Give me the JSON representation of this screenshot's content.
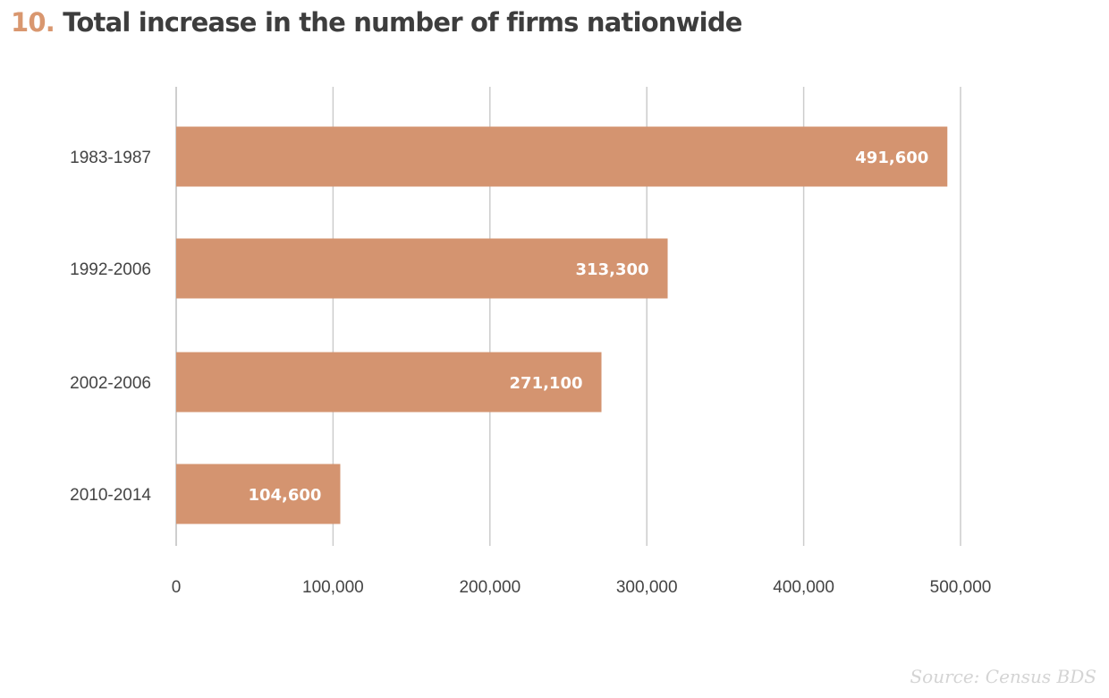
{
  "header": {
    "number": "10.",
    "title": "Total increase in the number of firms nationwide"
  },
  "source": "Source:  Census BDS",
  "colors": {
    "bar": "#d49470",
    "title_number": "#d9976f",
    "title_text": "#3d3d3d",
    "gridline": "#cccccc",
    "data_label": "#ffffff",
    "source_text": "#d4d4d4"
  },
  "chart_data": {
    "type": "bar",
    "orientation": "horizontal",
    "title": "Total increase in the number of firms nationwide",
    "xlabel": "",
    "ylabel": "",
    "categories": [
      "1983-1987",
      "1992-2006",
      "2002-2006",
      "2010-2014"
    ],
    "values": [
      491600,
      313300,
      271100,
      104600
    ],
    "data_labels": [
      "491,600",
      "313,300",
      "271,100",
      "104,600"
    ],
    "xlim": [
      0,
      500000
    ],
    "ticks": [
      0,
      100000,
      200000,
      300000,
      400000,
      500000
    ],
    "tick_labels": [
      "0",
      "100,000",
      "200,000",
      "300,000",
      "400,000",
      "500,000"
    ],
    "grid": true,
    "legend": "none"
  }
}
